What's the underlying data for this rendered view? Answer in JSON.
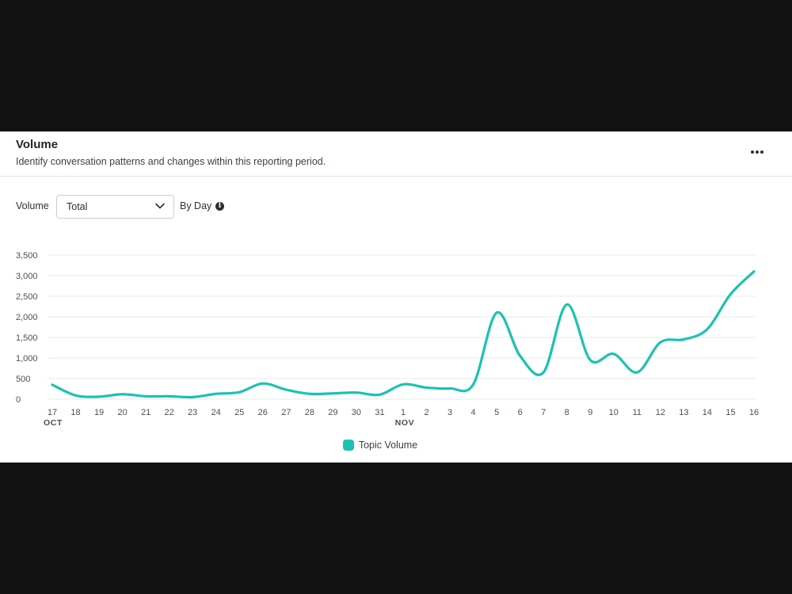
{
  "panel": {
    "title": "Volume",
    "subtitle": "Identify conversation patterns and changes within this reporting period.",
    "more_icon": "more-horizontal-icon"
  },
  "controls": {
    "volume_label": "Volume",
    "select_value": "Total",
    "granularity_label": "By Day",
    "info_icon": "info-icon",
    "chevron_icon": "chevron-down-icon"
  },
  "colors": {
    "series": "#1cc2b0",
    "grid": "#e6e8eb",
    "axis_text": "#4a4f55"
  },
  "chart_data": {
    "type": "line",
    "x": [
      "17",
      "18",
      "19",
      "20",
      "21",
      "22",
      "23",
      "24",
      "25",
      "26",
      "27",
      "28",
      "29",
      "30",
      "31",
      "1",
      "2",
      "3",
      "4",
      "5",
      "6",
      "7",
      "8",
      "9",
      "10",
      "11",
      "12",
      "13",
      "14",
      "15",
      "16"
    ],
    "month_labels": [
      {
        "index": 0,
        "label": "OCT"
      },
      {
        "index": 15,
        "label": "NOV"
      }
    ],
    "series": [
      {
        "name": "Topic Volume",
        "values": [
          350,
          90,
          60,
          120,
          70,
          70,
          50,
          130,
          170,
          380,
          230,
          130,
          140,
          160,
          110,
          360,
          280,
          260,
          360,
          2100,
          1050,
          650,
          2300,
          950,
          1100,
          650,
          1380,
          1450,
          1700,
          2550,
          3100
        ]
      }
    ],
    "y_ticks": [
      "0",
      "500",
      "1,000",
      "1,500",
      "2,000",
      "2,500",
      "3,000",
      "3,500"
    ],
    "ylim": [
      0,
      3500
    ],
    "grid": true,
    "legend": "bottom-center"
  }
}
